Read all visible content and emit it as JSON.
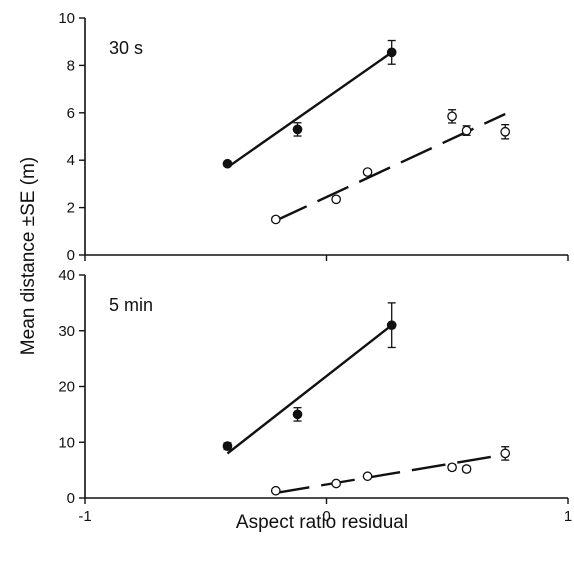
{
  "chart_data": [
    {
      "type": "scatter",
      "panel_label": "30 s",
      "xlabel": "",
      "ylabel": "",
      "xlim": [
        -1,
        1
      ],
      "ylim": [
        0,
        10
      ],
      "yticks": [
        0,
        2,
        4,
        6,
        8,
        10
      ],
      "series": [
        {
          "marker": "filled",
          "line_style": "solid",
          "points": [
            {
              "x": -0.41,
              "y": 3.85,
              "se": 0.1
            },
            {
              "x": -0.12,
              "y": 5.3,
              "se": 0.28
            },
            {
              "x": 0.27,
              "y": 8.55,
              "se": 0.5
            }
          ],
          "fit": {
            "x0": -0.41,
            "y0": 3.7,
            "x1": 0.27,
            "y1": 8.55
          }
        },
        {
          "marker": "open",
          "line_style": "dashed",
          "points": [
            {
              "x": -0.21,
              "y": 1.5,
              "se": 0.1
            },
            {
              "x": 0.04,
              "y": 2.35,
              "se": 0.1
            },
            {
              "x": 0.17,
              "y": 3.5,
              "se": 0.1
            },
            {
              "x": 0.52,
              "y": 5.85,
              "se": 0.28
            },
            {
              "x": 0.58,
              "y": 5.25,
              "se": 0.2
            },
            {
              "x": 0.74,
              "y": 5.2,
              "se": 0.3
            }
          ],
          "fit": {
            "x0": -0.21,
            "y0": 1.45,
            "x1": 0.74,
            "y1": 5.95
          }
        }
      ]
    },
    {
      "type": "scatter",
      "panel_label": "5 min",
      "xlabel": "Aspect ratio residual",
      "ylabel": "",
      "xlim": [
        -1,
        1
      ],
      "ylim": [
        0,
        40
      ],
      "yticks": [
        0,
        10,
        20,
        30,
        40
      ],
      "xticks": [
        -1,
        0,
        1
      ],
      "series": [
        {
          "marker": "filled",
          "line_style": "solid",
          "points": [
            {
              "x": -0.41,
              "y": 9.3,
              "se": 0.6
            },
            {
              "x": -0.12,
              "y": 15.0,
              "se": 1.2
            },
            {
              "x": 0.27,
              "y": 31.0,
              "se": 4.0
            }
          ],
          "fit": {
            "x0": -0.41,
            "y0": 8.0,
            "x1": 0.27,
            "y1": 31.0
          }
        },
        {
          "marker": "open",
          "line_style": "dashed",
          "points": [
            {
              "x": -0.21,
              "y": 1.3,
              "se": 0.3
            },
            {
              "x": 0.04,
              "y": 2.6,
              "se": 0.3
            },
            {
              "x": 0.17,
              "y": 3.9,
              "se": 0.3
            },
            {
              "x": 0.52,
              "y": 5.5,
              "se": 0.5
            },
            {
              "x": 0.58,
              "y": 5.2,
              "se": 0.5
            },
            {
              "x": 0.74,
              "y": 8.0,
              "se": 1.2
            }
          ],
          "fit": {
            "x0": -0.21,
            "y0": 0.9,
            "x1": 0.74,
            "y1": 7.8
          }
        }
      ]
    }
  ],
  "shared": {
    "ylabel": "Mean distance ±SE (m)",
    "colors": {
      "ink": "#111111",
      "open_fill": "#ffffff"
    }
  }
}
